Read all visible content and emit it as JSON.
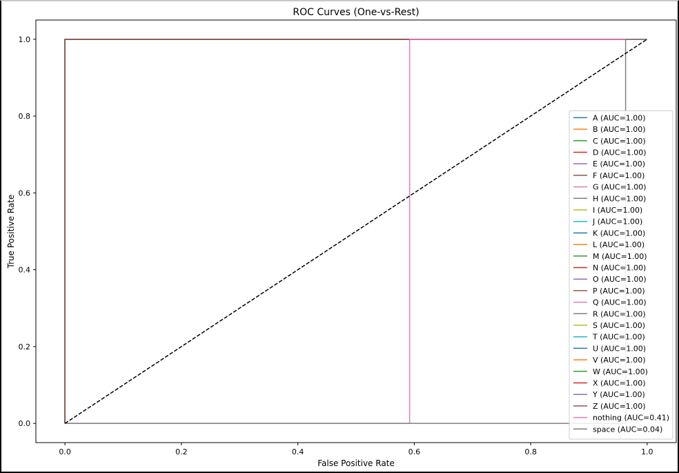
{
  "chart_data": {
    "type": "line",
    "title": "ROC Curves (One-vs-Rest)",
    "xlabel": "False Positive Rate",
    "ylabel": "True Positive Rate",
    "xlim": [
      -0.05,
      1.05
    ],
    "ylim": [
      -0.05,
      1.05
    ],
    "xticks": [
      0.0,
      0.2,
      0.4,
      0.6,
      0.8,
      1.0
    ],
    "yticks": [
      0.0,
      0.2,
      0.4,
      0.6,
      0.8,
      1.0
    ],
    "xtick_labels": [
      "0.0",
      "0.2",
      "0.4",
      "0.6",
      "0.8",
      "1.0"
    ],
    "ytick_labels": [
      "0.0",
      "0.2",
      "0.4",
      "0.6",
      "0.8",
      "1.0"
    ],
    "grid": false,
    "legend_position": "lower-right",
    "reference_line": {
      "x": [
        0,
        1
      ],
      "y": [
        0,
        1
      ],
      "style": "dashed",
      "color": "#000000"
    },
    "series": [
      {
        "name": "A (AUC=1.00)",
        "color": "#1f77b4",
        "x": [
          0,
          0,
          1
        ],
        "y": [
          0,
          1,
          1
        ]
      },
      {
        "name": "B (AUC=1.00)",
        "color": "#ff7f0e",
        "x": [
          0,
          0,
          1
        ],
        "y": [
          0,
          1,
          1
        ]
      },
      {
        "name": "C (AUC=1.00)",
        "color": "#2ca02c",
        "x": [
          0,
          0,
          1
        ],
        "y": [
          0,
          1,
          1
        ]
      },
      {
        "name": "D (AUC=1.00)",
        "color": "#d62728",
        "x": [
          0,
          0,
          1
        ],
        "y": [
          0,
          1,
          1
        ]
      },
      {
        "name": "E (AUC=1.00)",
        "color": "#9467bd",
        "x": [
          0,
          0,
          1
        ],
        "y": [
          0,
          1,
          1
        ]
      },
      {
        "name": "F (AUC=1.00)",
        "color": "#8c564b",
        "x": [
          0,
          0,
          1
        ],
        "y": [
          0,
          1,
          1
        ]
      },
      {
        "name": "G (AUC=1.00)",
        "color": "#e377c2",
        "x": [
          0,
          0,
          1
        ],
        "y": [
          0,
          1,
          1
        ]
      },
      {
        "name": "H (AUC=1.00)",
        "color": "#7f7f7f",
        "x": [
          0,
          0,
          1
        ],
        "y": [
          0,
          1,
          1
        ]
      },
      {
        "name": "I (AUC=1.00)",
        "color": "#bcbd22",
        "x": [
          0,
          0,
          1
        ],
        "y": [
          0,
          1,
          1
        ]
      },
      {
        "name": "J (AUC=1.00)",
        "color": "#17becf",
        "x": [
          0,
          0,
          1
        ],
        "y": [
          0,
          1,
          1
        ]
      },
      {
        "name": "K (AUC=1.00)",
        "color": "#1f77b4",
        "x": [
          0,
          0,
          1
        ],
        "y": [
          0,
          1,
          1
        ]
      },
      {
        "name": "L (AUC=1.00)",
        "color": "#ff7f0e",
        "x": [
          0,
          0,
          1
        ],
        "y": [
          0,
          1,
          1
        ]
      },
      {
        "name": "M (AUC=1.00)",
        "color": "#2ca02c",
        "x": [
          0,
          0,
          1
        ],
        "y": [
          0,
          1,
          1
        ]
      },
      {
        "name": "N (AUC=1.00)",
        "color": "#d62728",
        "x": [
          0,
          0,
          1
        ],
        "y": [
          0,
          1,
          1
        ]
      },
      {
        "name": "O (AUC=1.00)",
        "color": "#9467bd",
        "x": [
          0,
          0,
          1
        ],
        "y": [
          0,
          1,
          1
        ]
      },
      {
        "name": "P (AUC=1.00)",
        "color": "#8c564b",
        "x": [
          0,
          0,
          1
        ],
        "y": [
          0,
          1,
          1
        ]
      },
      {
        "name": "Q (AUC=1.00)",
        "color": "#e377c2",
        "x": [
          0,
          0,
          1
        ],
        "y": [
          0,
          1,
          1
        ]
      },
      {
        "name": "R (AUC=1.00)",
        "color": "#7f7f7f",
        "x": [
          0,
          0,
          1
        ],
        "y": [
          0,
          1,
          1
        ]
      },
      {
        "name": "S (AUC=1.00)",
        "color": "#bcbd22",
        "x": [
          0,
          0,
          1
        ],
        "y": [
          0,
          1,
          1
        ]
      },
      {
        "name": "T (AUC=1.00)",
        "color": "#17becf",
        "x": [
          0,
          0,
          1
        ],
        "y": [
          0,
          1,
          1
        ]
      },
      {
        "name": "U (AUC=1.00)",
        "color": "#1f77b4",
        "x": [
          0,
          0,
          1
        ],
        "y": [
          0,
          1,
          1
        ]
      },
      {
        "name": "V (AUC=1.00)",
        "color": "#ff7f0e",
        "x": [
          0,
          0,
          1
        ],
        "y": [
          0,
          1,
          1
        ]
      },
      {
        "name": "W (AUC=1.00)",
        "color": "#2ca02c",
        "x": [
          0,
          0,
          1
        ],
        "y": [
          0,
          1,
          1
        ]
      },
      {
        "name": "X (AUC=1.00)",
        "color": "#d62728",
        "x": [
          0,
          0,
          1
        ],
        "y": [
          0,
          1,
          1
        ]
      },
      {
        "name": "Y (AUC=1.00)",
        "color": "#9467bd",
        "x": [
          0,
          0,
          1
        ],
        "y": [
          0,
          1,
          1
        ]
      },
      {
        "name": "Z (AUC=1.00)",
        "color": "#8c564b",
        "x": [
          0,
          0,
          1
        ],
        "y": [
          0,
          1,
          1
        ]
      },
      {
        "name": "nothing (AUC=0.41)",
        "color": "#e377c2",
        "x": [
          0,
          0.592,
          0.592,
          1
        ],
        "y": [
          0,
          0,
          1,
          1
        ]
      },
      {
        "name": "space (AUC=0.04)",
        "color": "#7f7f7f",
        "x": [
          0,
          0.963,
          0.963,
          1
        ],
        "y": [
          0,
          0,
          1,
          1
        ]
      }
    ]
  }
}
